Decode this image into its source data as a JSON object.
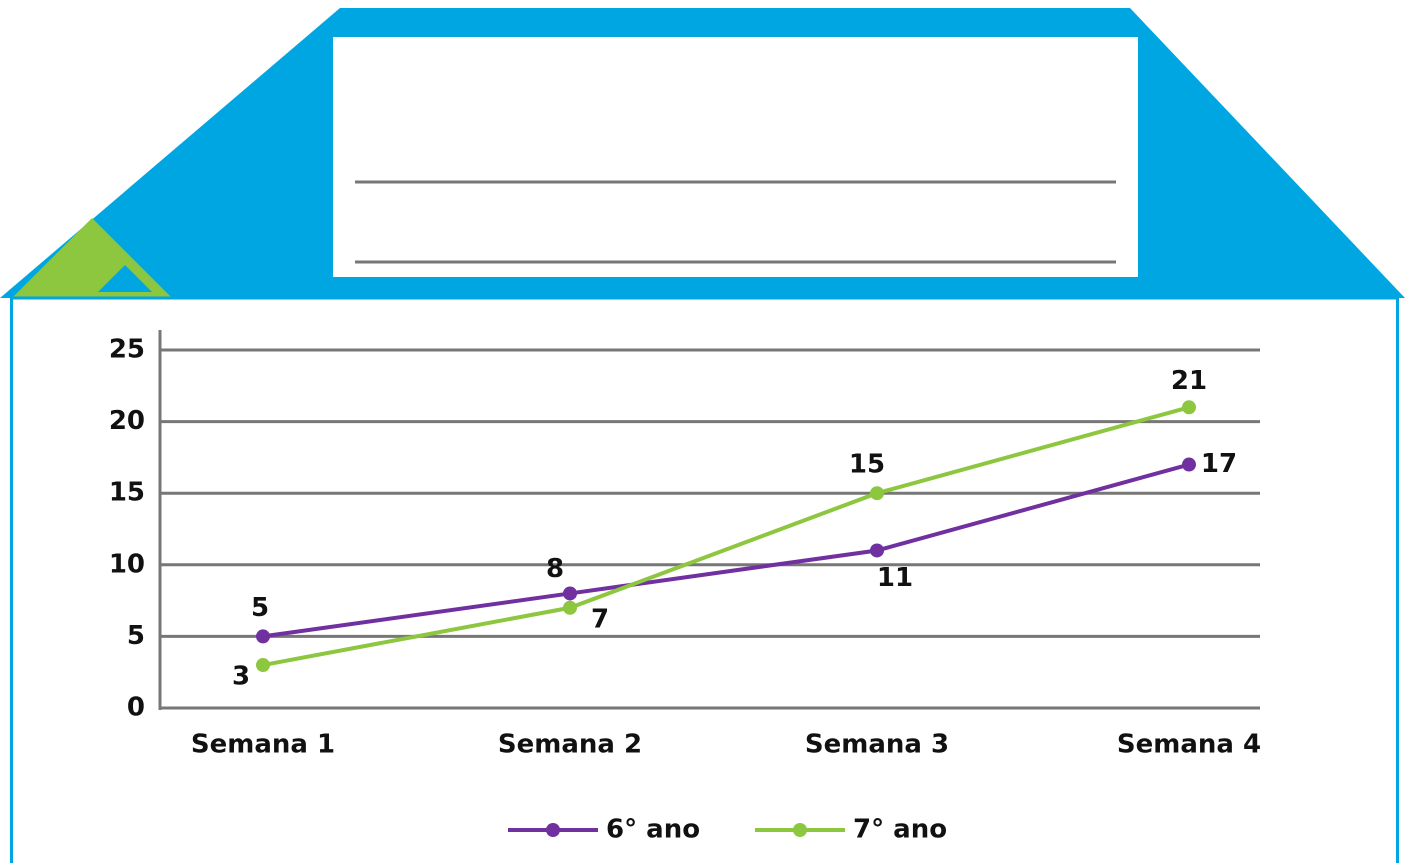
{
  "chart_data": {
    "type": "line",
    "categories": [
      "Semana 1",
      "Semana 2",
      "Semana 3",
      "Semana 4"
    ],
    "series": [
      {
        "name": "6° ano",
        "color": "#7030a0",
        "values": [
          5,
          8,
          11,
          17
        ]
      },
      {
        "name": "7° ano",
        "color": "#8dc63f",
        "values": [
          3,
          7,
          15,
          21
        ]
      }
    ],
    "ylim": [
      0,
      25
    ],
    "yticks": [
      0,
      5,
      10,
      15,
      20,
      25
    ],
    "grid": true,
    "legend": "bottom"
  }
}
